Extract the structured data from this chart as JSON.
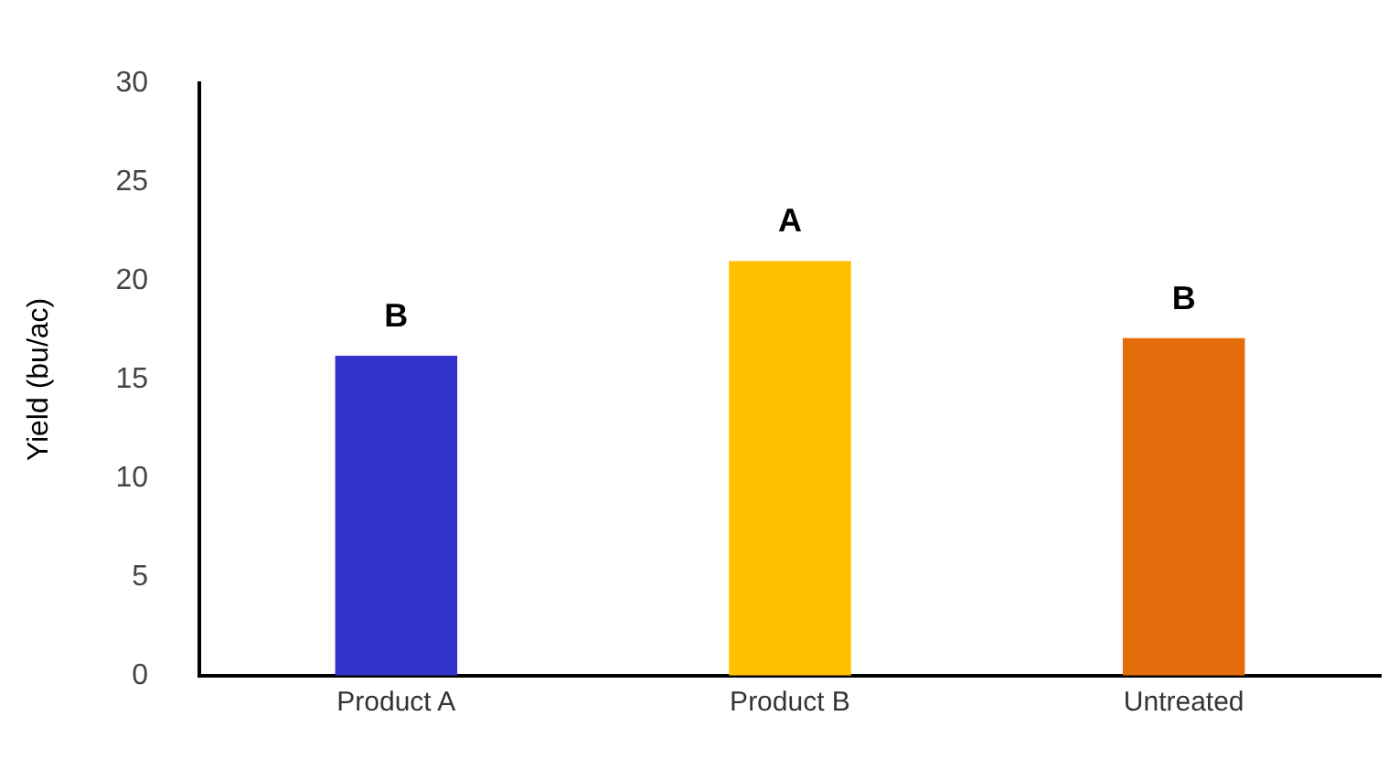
{
  "chart_data": {
    "type": "bar",
    "ylabel": "Yield (bu/ac)",
    "categories": [
      "Product A",
      "Product B",
      "Untreated"
    ],
    "values": [
      16.2,
      21.0,
      17.1
    ],
    "colors": [
      "#3333cc",
      "#ffc000",
      "#e36c0a"
    ],
    "ylim": [
      0,
      30
    ],
    "yticks": [
      0,
      5,
      10,
      15,
      20,
      25,
      30
    ],
    "grid": false,
    "annotations": [
      {
        "text": "B",
        "x": "Product A",
        "y": 16.2
      },
      {
        "text": "A",
        "x": "Product B",
        "y": 21.0
      },
      {
        "text": "B",
        "x": "Untreated",
        "y": 17.1
      }
    ]
  }
}
